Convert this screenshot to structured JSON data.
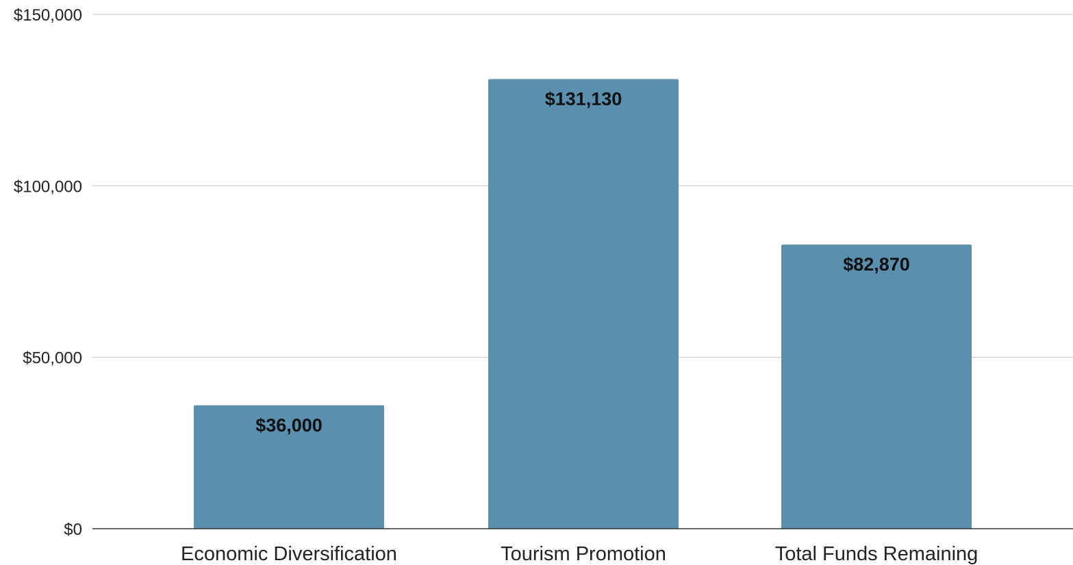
{
  "chart_data": {
    "type": "bar",
    "title": "",
    "xlabel": "",
    "ylabel": "",
    "categories": [
      "Economic Diversification",
      "Tourism Promotion",
      "Total Funds Remaining"
    ],
    "values": [
      36000,
      131130,
      82870
    ],
    "data_labels": [
      "$36,000",
      "$131,130",
      "$82,870"
    ],
    "ylim": [
      0,
      150000
    ],
    "yticks": [
      0,
      50000,
      100000,
      150000
    ],
    "ytick_labels": [
      "$0",
      "$50,000",
      "$100,000",
      "$150,000"
    ],
    "grid": true,
    "legend": "none",
    "bar_color": "#5a8fae",
    "grid_color": "#cccccc",
    "axis_color": "#333333"
  }
}
